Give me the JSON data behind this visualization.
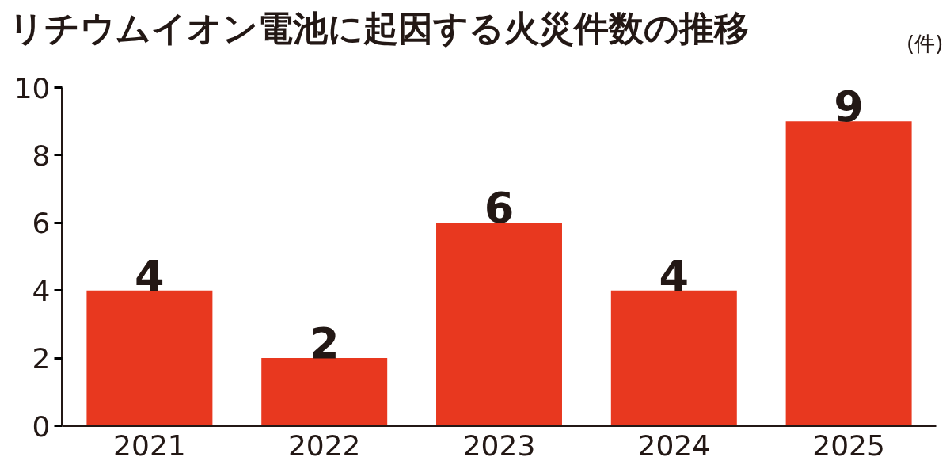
{
  "chart_data": {
    "type": "bar",
    "title": "リチウムイオン電池に起因する火災件数の推移",
    "ylabel": "(件)",
    "categories": [
      "2021",
      "2022",
      "2023",
      "2024",
      "2025"
    ],
    "values": [
      4,
      2,
      6,
      4,
      9
    ],
    "color": "#e8381f",
    "ylim": [
      0,
      10
    ],
    "yticks": [
      0,
      2,
      4,
      6,
      8,
      10
    ],
    "grid": false,
    "data_labels": true
  }
}
